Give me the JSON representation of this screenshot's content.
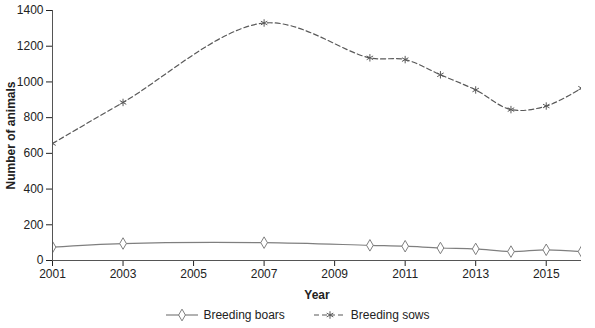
{
  "chart_data": {
    "type": "line",
    "x_label": "Year",
    "y_label": "Number of animals",
    "x": [
      2001,
      2003,
      2007,
      2010,
      2011,
      2012,
      2013,
      2014,
      2015,
      2016
    ],
    "series": [
      {
        "name": "Breeding boars",
        "color": "#7f7f7f",
        "marker": "diamond",
        "line_style": "solid",
        "values": [
          75,
          95,
          100,
          85,
          80,
          70,
          65,
          50,
          60,
          50
        ]
      },
      {
        "name": "Breeding sows",
        "color": "#595959",
        "marker": "asterisk",
        "line_style": "dashed",
        "values": [
          655,
          885,
          1330,
          1135,
          1125,
          1040,
          955,
          845,
          865,
          965
        ]
      }
    ],
    "xlim": [
      2001,
      2016
    ],
    "xticks": [
      2001,
      2003,
      2005,
      2007,
      2009,
      2011,
      2013,
      2015
    ],
    "ylim": [
      0,
      1400
    ],
    "yticks": [
      0,
      200,
      400,
      600,
      800,
      1000,
      1200,
      1400
    ],
    "grid": false,
    "legend": "bottom"
  }
}
